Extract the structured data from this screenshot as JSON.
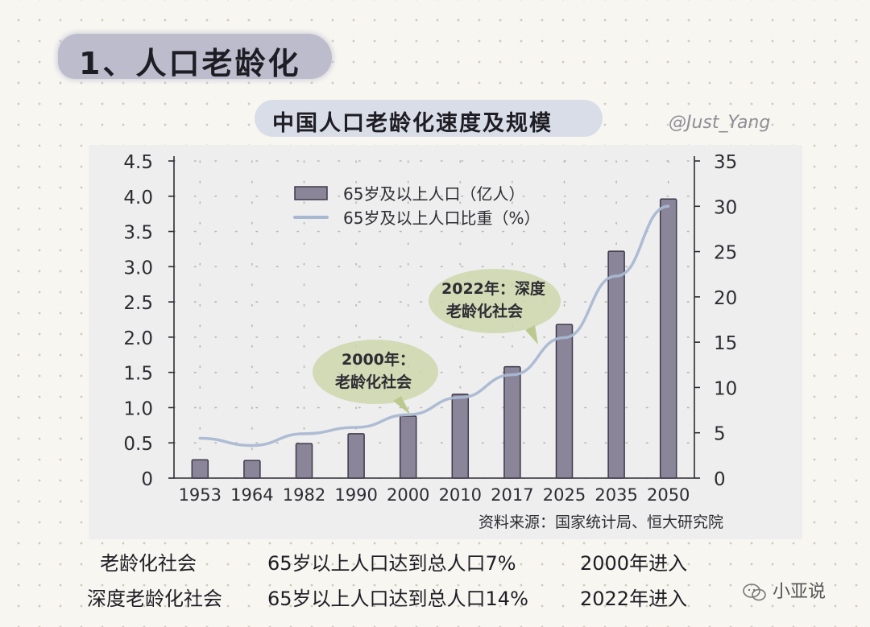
{
  "section_title": "1、人口老龄化",
  "watermark": "@Just_Yang",
  "source": "资料来源：国家统计局、恒大研究院",
  "brand": "小亚说",
  "callouts": [
    {
      "line1": "2000年：",
      "line2": "老龄化社会"
    },
    {
      "line1": "2022年：深度",
      "line2": "老龄化社会"
    }
  ],
  "definitions": [
    {
      "term": "老龄化社会",
      "criterion": "65岁以上人口达到总人口7%",
      "year": "2000年进入"
    },
    {
      "term": "深度老龄化社会",
      "criterion": "65岁以上人口达到总人口14%",
      "year": "2022年进入"
    }
  ],
  "colors": {
    "bar": "#8a8599",
    "bar_edge": "#3e3a48",
    "line": "#a9b8d2",
    "callout": "#cdd6ab",
    "callout_arrow": "#bcc98e"
  },
  "chart_data": {
    "type": "bar",
    "title": "中国人口老龄化速度及规模",
    "categories": [
      "1953",
      "1964",
      "1982",
      "1990",
      "2000",
      "2010",
      "2017",
      "2025",
      "2035",
      "2050"
    ],
    "series": [
      {
        "name": "65岁及以上人口（亿人）",
        "type": "bar",
        "axis": "left",
        "values": [
          0.26,
          0.25,
          0.49,
          0.63,
          0.88,
          1.19,
          1.58,
          2.18,
          3.22,
          3.96
        ]
      },
      {
        "name": "65岁及以上人口比重（%）",
        "type": "line",
        "axis": "right",
        "values": [
          4.4,
          3.6,
          4.9,
          5.6,
          7.0,
          8.9,
          11.4,
          15.5,
          22.3,
          30.0
        ]
      }
    ],
    "ylim_left": [
      0,
      4.5
    ],
    "yticks_left": [
      "0",
      "0.5",
      "1.0",
      "1.5",
      "2.0",
      "2.5",
      "3.0",
      "3.5",
      "4.0",
      "4.5"
    ],
    "ylim_right": [
      0,
      35
    ],
    "yticks_right": [
      "0",
      "5",
      "10",
      "15",
      "20",
      "25",
      "30",
      "35"
    ],
    "legend_position": "top-center",
    "grid": true
  }
}
